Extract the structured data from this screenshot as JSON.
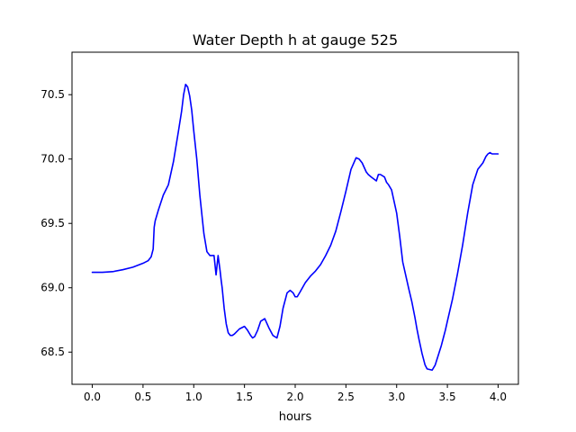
{
  "chart_data": {
    "type": "line",
    "title": "Water Depth h at gauge 525",
    "xlabel": "hours",
    "ylabel": "",
    "xlim": [
      -0.2,
      4.2
    ],
    "ylim": [
      68.25,
      70.83
    ],
    "xticks": [
      0.0,
      0.5,
      1.0,
      1.5,
      2.0,
      2.5,
      3.0,
      3.5,
      4.0
    ],
    "xtick_labels": [
      "0.0",
      "0.5",
      "1.0",
      "1.5",
      "2.0",
      "2.5",
      "3.0",
      "3.5",
      "4.0"
    ],
    "yticks": [
      68.5,
      69.0,
      69.5,
      70.0,
      70.5
    ],
    "ytick_labels": [
      "68.5",
      "69.0",
      "69.5",
      "70.0",
      "70.5"
    ],
    "grid": false,
    "series": [
      {
        "color": "#0000ff",
        "x": [
          0.0,
          0.1,
          0.2,
          0.3,
          0.4,
          0.5,
          0.55,
          0.58,
          0.6,
          0.61,
          0.62,
          0.65,
          0.7,
          0.75,
          0.8,
          0.85,
          0.88,
          0.9,
          0.92,
          0.94,
          0.96,
          0.98,
          1.0,
          1.03,
          1.06,
          1.1,
          1.13,
          1.16,
          1.2,
          1.22,
          1.24,
          1.26,
          1.27,
          1.28,
          1.29,
          1.3,
          1.32,
          1.34,
          1.36,
          1.38,
          1.4,
          1.45,
          1.5,
          1.53,
          1.56,
          1.58,
          1.6,
          1.63,
          1.66,
          1.7,
          1.74,
          1.78,
          1.82,
          1.85,
          1.88,
          1.92,
          1.95,
          1.98,
          2.0,
          2.02,
          2.05,
          2.1,
          2.15,
          2.2,
          2.25,
          2.3,
          2.35,
          2.4,
          2.45,
          2.5,
          2.55,
          2.6,
          2.63,
          2.66,
          2.7,
          2.72,
          2.75,
          2.8,
          2.82,
          2.84,
          2.88,
          2.9,
          2.92,
          2.95,
          3.0,
          3.03,
          3.06,
          3.08,
          3.1,
          3.12,
          3.15,
          3.18,
          3.2,
          3.22,
          3.25,
          3.28,
          3.3,
          3.35,
          3.38,
          3.4,
          3.42,
          3.44,
          3.46,
          3.48,
          3.5,
          3.55,
          3.6,
          3.65,
          3.7,
          3.75,
          3.8,
          3.85,
          3.88,
          3.9,
          3.92,
          3.94,
          3.96,
          3.98,
          4.0
        ],
        "y": [
          69.12,
          69.12,
          69.125,
          69.14,
          69.16,
          69.19,
          69.21,
          69.24,
          69.3,
          69.47,
          69.52,
          69.6,
          69.72,
          69.8,
          69.98,
          70.22,
          70.37,
          70.5,
          70.58,
          70.56,
          70.49,
          70.38,
          70.22,
          70.0,
          69.72,
          69.42,
          69.28,
          69.25,
          69.25,
          69.1,
          69.25,
          69.13,
          69.06,
          69.0,
          68.92,
          68.84,
          68.72,
          68.65,
          68.63,
          68.63,
          68.64,
          68.68,
          68.7,
          68.67,
          68.63,
          68.61,
          68.62,
          68.67,
          68.74,
          68.76,
          68.69,
          68.63,
          68.61,
          68.7,
          68.84,
          68.96,
          68.98,
          68.96,
          68.93,
          68.93,
          68.97,
          69.04,
          69.09,
          69.13,
          69.18,
          69.25,
          69.33,
          69.44,
          69.59,
          69.75,
          69.92,
          70.01,
          70.0,
          69.97,
          69.9,
          69.88,
          69.86,
          69.83,
          69.88,
          69.88,
          69.86,
          69.82,
          69.8,
          69.76,
          69.58,
          69.4,
          69.2,
          69.13,
          69.06,
          68.99,
          68.89,
          68.77,
          68.68,
          68.6,
          68.49,
          68.4,
          68.37,
          68.36,
          68.4,
          68.45,
          68.5,
          68.55,
          68.61,
          68.67,
          68.74,
          68.91,
          69.11,
          69.33,
          69.58,
          69.8,
          69.92,
          69.97,
          70.02,
          70.04,
          70.05,
          70.04,
          70.04,
          70.04,
          70.04
        ]
      }
    ]
  }
}
